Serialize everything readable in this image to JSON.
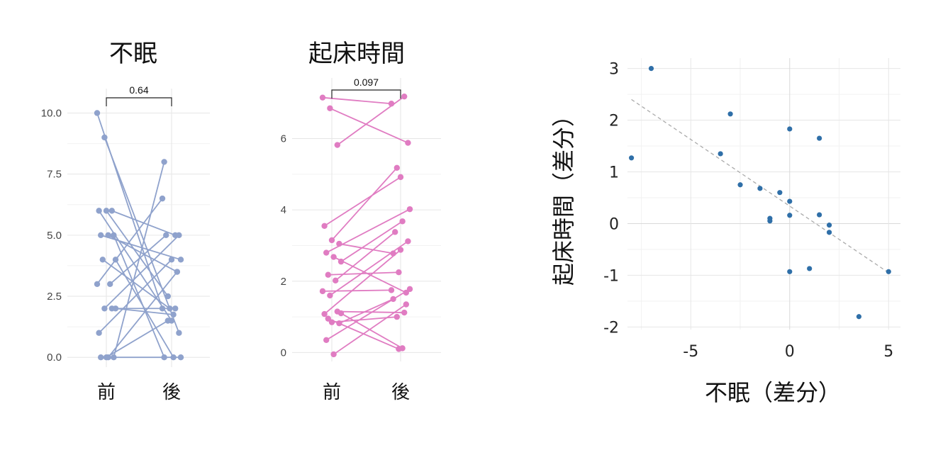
{
  "chart_data": [
    {
      "type": "line",
      "title": "不眠",
      "categories": [
        "前",
        "後"
      ],
      "ylim": [
        -0.4,
        11.0
      ],
      "yticks": [
        "0.0",
        "2.5",
        "5.0",
        "7.5",
        "10.0"
      ],
      "ytick_values": [
        0,
        2.5,
        5,
        7.5,
        10
      ],
      "grid": true,
      "color": "#8fa2cc",
      "bracket_label": "0.64",
      "pairs": [
        {
          "before": 10.0,
          "after": 2.0
        },
        {
          "before": 9.0,
          "after": 1.0
        },
        {
          "before": 6.0,
          "after": 5.0
        },
        {
          "before": 6.0,
          "after": 1.5
        },
        {
          "before": 6.0,
          "after": 2.5
        },
        {
          "before": 5.0,
          "after": 0.0
        },
        {
          "before": 5.0,
          "after": 4.0
        },
        {
          "before": 5.0,
          "after": 3.5
        },
        {
          "before": 4.0,
          "after": 0.0
        },
        {
          "before": 4.0,
          "after": 2.0
        },
        {
          "before": 3.0,
          "after": 5.0
        },
        {
          "before": 3.0,
          "after": 6.5
        },
        {
          "before": 2.0,
          "after": 5.0
        },
        {
          "before": 2.0,
          "after": 2.0
        },
        {
          "before": 1.0,
          "after": 4.0
        },
        {
          "before": 0.0,
          "after": 1.5
        },
        {
          "before": 0.0,
          "after": 8.0
        },
        {
          "before": 0.0,
          "after": 0.0
        },
        {
          "before": 0.0,
          "after": 3.5
        },
        {
          "before": 2.0,
          "after": 1.75
        }
      ]
    },
    {
      "type": "line",
      "title": "起床時間",
      "categories": [
        "前",
        "後"
      ],
      "ylim": [
        -0.25,
        7.7
      ],
      "yticks": [
        "0",
        "2",
        "4",
        "6"
      ],
      "ytick_values": [
        0,
        2,
        4,
        6
      ],
      "grid": true,
      "color": "#e07cc2",
      "bracket_label": "0.097",
      "pairs": [
        {
          "before": 7.15,
          "after": 6.98
        },
        {
          "before": 6.85,
          "after": 5.88
        },
        {
          "before": 5.82,
          "after": 7.18
        },
        {
          "before": 3.55,
          "after": 4.92
        },
        {
          "before": 3.15,
          "after": 5.18
        },
        {
          "before": 3.05,
          "after": 2.78
        },
        {
          "before": 2.8,
          "after": 4.02
        },
        {
          "before": 2.68,
          "after": 1.68
        },
        {
          "before": 2.55,
          "after": 3.68
        },
        {
          "before": 2.18,
          "after": 2.25
        },
        {
          "before": 2.02,
          "after": 3.38
        },
        {
          "before": 1.72,
          "after": 1.75
        },
        {
          "before": 1.6,
          "after": 3.12
        },
        {
          "before": 1.15,
          "after": 1.12
        },
        {
          "before": 1.08,
          "after": 2.88
        },
        {
          "before": 0.85,
          "after": 1.0
        },
        {
          "before": 0.82,
          "after": 1.5
        },
        {
          "before": 0.35,
          "after": 1.78
        },
        {
          "before": -0.05,
          "after": 1.35
        },
        {
          "before": 1.1,
          "after": 0.12
        },
        {
          "before": 0.95,
          "after": 0.1
        }
      ]
    },
    {
      "type": "scatter",
      "xlabel": "不眠（差分）",
      "ylabel": "起床時間（差分）",
      "xlim": [
        -8.2,
        5.6
      ],
      "ylim": [
        -2.05,
        3.2
      ],
      "xticks": [
        "-5",
        "0",
        "5"
      ],
      "xtick_values": [
        -5,
        0,
        5
      ],
      "yticks": [
        "-2",
        "-1",
        "0",
        "1",
        "2",
        "3"
      ],
      "ytick_values": [
        -2,
        -1,
        0,
        1,
        2,
        3
      ],
      "grid": true,
      "color": "#2f6fa8",
      "trend_line": {
        "x": [
          -8.0,
          5.0
        ],
        "y": [
          2.4,
          -0.95
        ],
        "color": "#aaaaaa",
        "style": "dashed"
      },
      "points": [
        {
          "x": -7.0,
          "y": 3.0
        },
        {
          "x": -8.0,
          "y": 1.27
        },
        {
          "x": -3.0,
          "y": 2.12
        },
        {
          "x": -3.5,
          "y": 1.35
        },
        {
          "x": -2.5,
          "y": 0.75
        },
        {
          "x": -1.5,
          "y": 0.68
        },
        {
          "x": -1.0,
          "y": 0.1
        },
        {
          "x": -1.0,
          "y": 0.05
        },
        {
          "x": -0.5,
          "y": 0.6
        },
        {
          "x": 0.0,
          "y": 1.83
        },
        {
          "x": 0.0,
          "y": 0.43
        },
        {
          "x": 0.0,
          "y": 0.16
        },
        {
          "x": 0.0,
          "y": -0.93
        },
        {
          "x": 1.0,
          "y": -0.87
        },
        {
          "x": 1.5,
          "y": 1.65
        },
        {
          "x": 1.5,
          "y": 0.17
        },
        {
          "x": 2.0,
          "y": -0.03
        },
        {
          "x": 2.0,
          "y": -0.17
        },
        {
          "x": 3.5,
          "y": -1.8
        },
        {
          "x": 5.0,
          "y": -0.93
        }
      ]
    }
  ]
}
